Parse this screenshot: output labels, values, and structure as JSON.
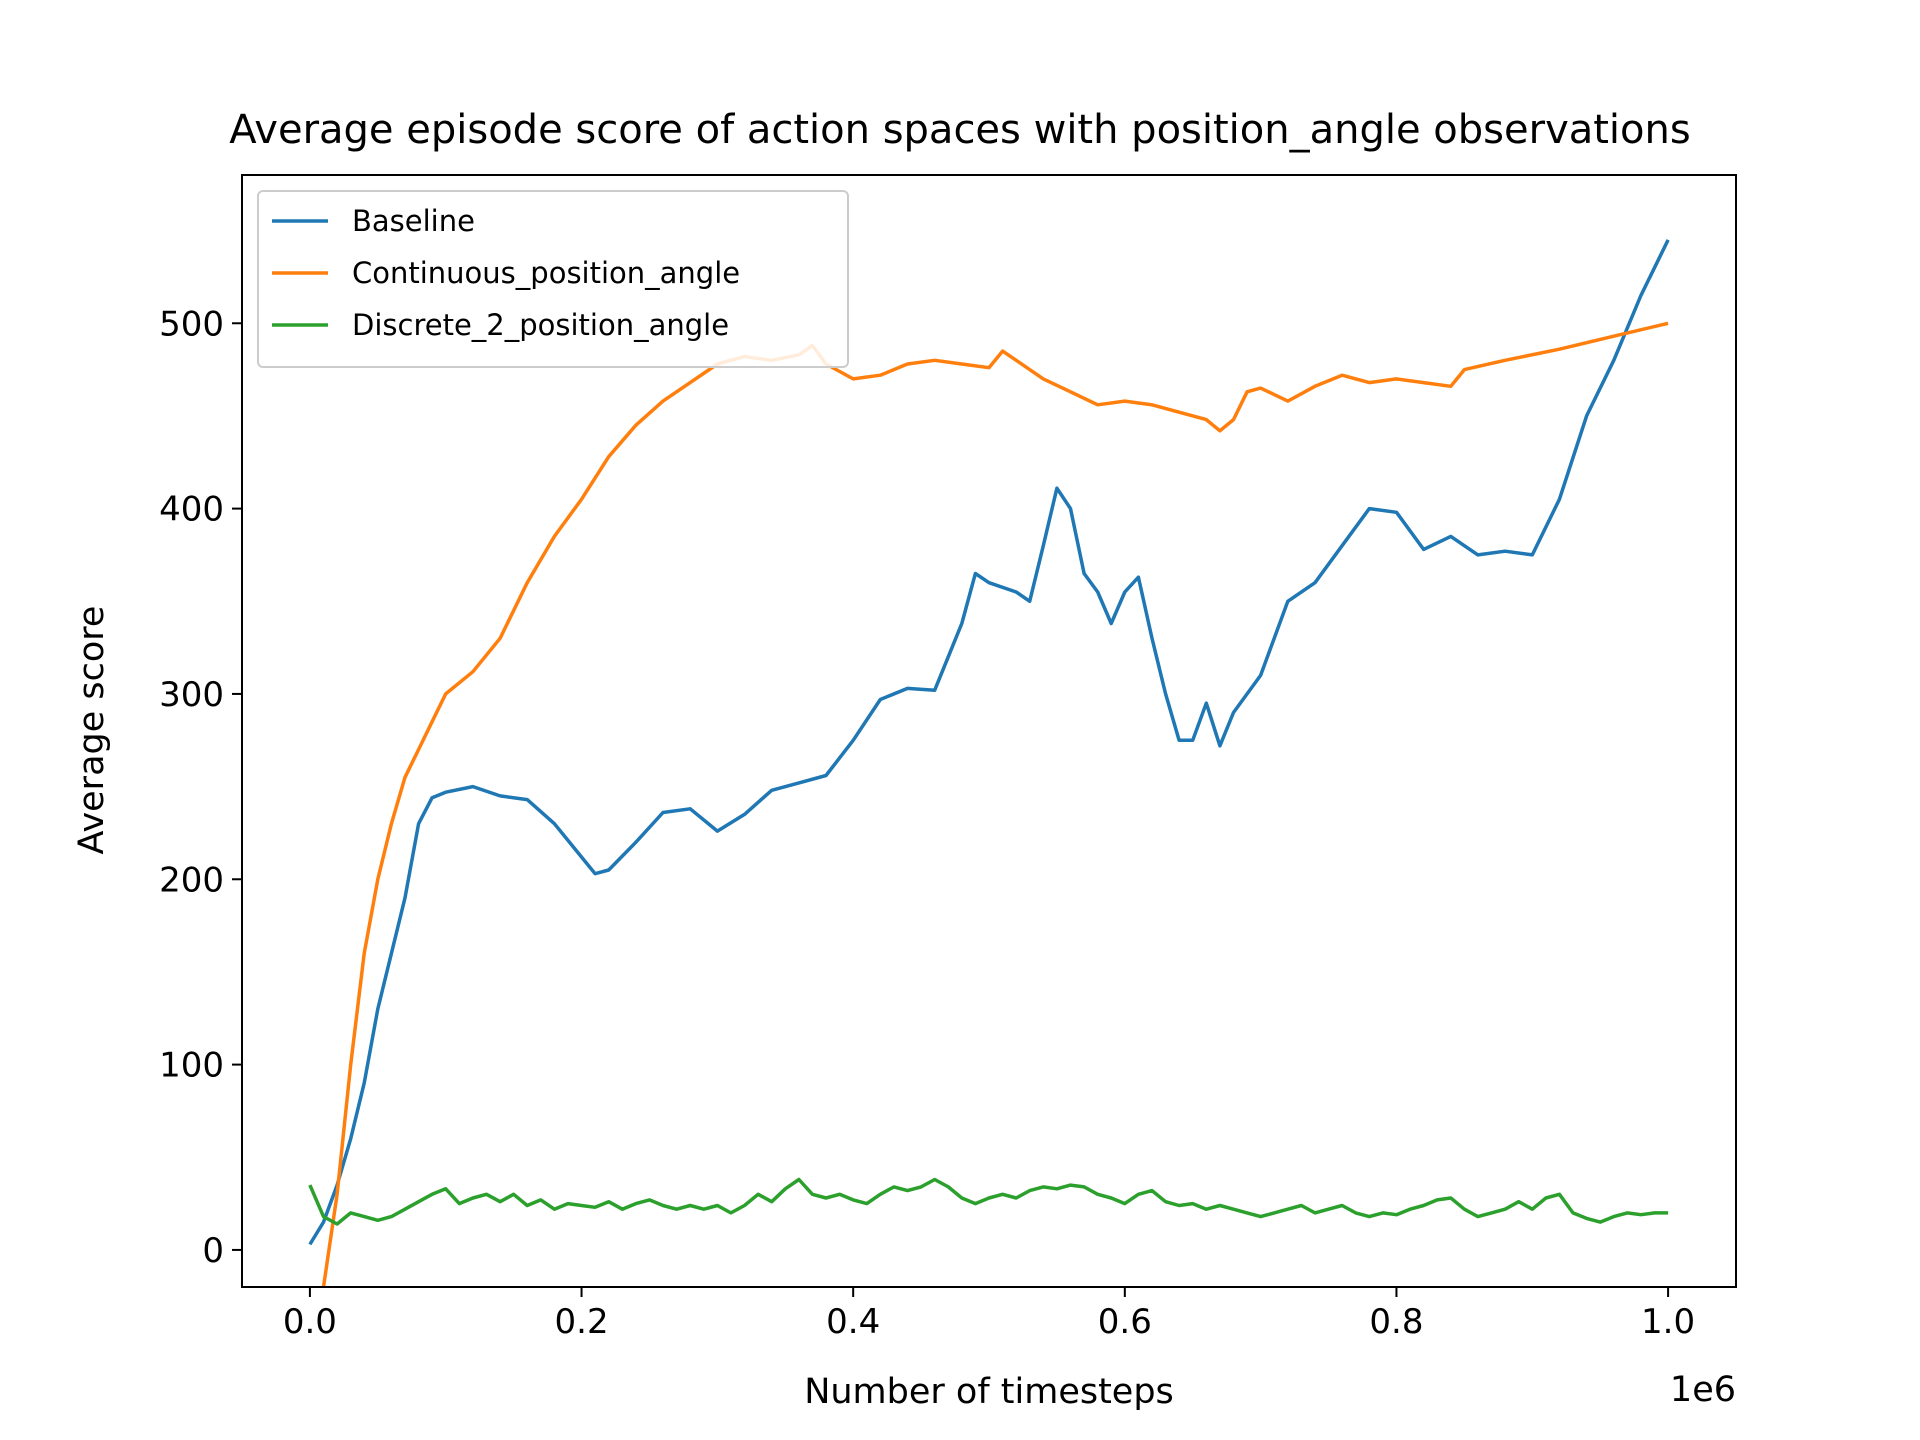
{
  "chart_data": {
    "type": "line",
    "title": "Average episode score of action spaces with position_angle observations",
    "xlabel": "Number of timesteps",
    "ylabel": "Average score",
    "x_multiplier_label": "1e6",
    "xlim": [
      -0.05,
      1.05
    ],
    "ylim": [
      -20,
      580
    ],
    "xticks": [
      0.0,
      0.2,
      0.4,
      0.6,
      0.8,
      1.0
    ],
    "xtick_labels": [
      "0.0",
      "0.2",
      "0.4",
      "0.6",
      "0.8",
      "1.0"
    ],
    "yticks": [
      0,
      100,
      200,
      300,
      400,
      500
    ],
    "ytick_labels": [
      "0",
      "100",
      "200",
      "300",
      "400",
      "500"
    ],
    "grid": false,
    "legend_position": "upper-left",
    "series": [
      {
        "name": "Baseline",
        "color": "#1f77b4",
        "points": [
          [
            0.0,
            3
          ],
          [
            0.01,
            15
          ],
          [
            0.02,
            35
          ],
          [
            0.03,
            60
          ],
          [
            0.04,
            90
          ],
          [
            0.05,
            130
          ],
          [
            0.06,
            160
          ],
          [
            0.07,
            190
          ],
          [
            0.08,
            230
          ],
          [
            0.09,
            244
          ],
          [
            0.1,
            247
          ],
          [
            0.12,
            250
          ],
          [
            0.14,
            245
          ],
          [
            0.16,
            243
          ],
          [
            0.18,
            230
          ],
          [
            0.2,
            212
          ],
          [
            0.21,
            203
          ],
          [
            0.22,
            205
          ],
          [
            0.24,
            220
          ],
          [
            0.26,
            236
          ],
          [
            0.28,
            238
          ],
          [
            0.3,
            226
          ],
          [
            0.32,
            235
          ],
          [
            0.34,
            248
          ],
          [
            0.36,
            252
          ],
          [
            0.38,
            256
          ],
          [
            0.4,
            275
          ],
          [
            0.42,
            297
          ],
          [
            0.44,
            303
          ],
          [
            0.46,
            302
          ],
          [
            0.48,
            338
          ],
          [
            0.49,
            365
          ],
          [
            0.5,
            360
          ],
          [
            0.52,
            355
          ],
          [
            0.53,
            350
          ],
          [
            0.54,
            380
          ],
          [
            0.55,
            411
          ],
          [
            0.56,
            400
          ],
          [
            0.57,
            365
          ],
          [
            0.58,
            355
          ],
          [
            0.59,
            338
          ],
          [
            0.6,
            355
          ],
          [
            0.61,
            363
          ],
          [
            0.62,
            330
          ],
          [
            0.63,
            300
          ],
          [
            0.64,
            275
          ],
          [
            0.65,
            275
          ],
          [
            0.66,
            295
          ],
          [
            0.67,
            272
          ],
          [
            0.68,
            290
          ],
          [
            0.7,
            310
          ],
          [
            0.72,
            350
          ],
          [
            0.74,
            360
          ],
          [
            0.76,
            380
          ],
          [
            0.78,
            400
          ],
          [
            0.8,
            398
          ],
          [
            0.82,
            378
          ],
          [
            0.84,
            385
          ],
          [
            0.86,
            375
          ],
          [
            0.88,
            377
          ],
          [
            0.9,
            375
          ],
          [
            0.92,
            405
          ],
          [
            0.94,
            450
          ],
          [
            0.96,
            480
          ],
          [
            0.98,
            515
          ],
          [
            1.0,
            545
          ]
        ]
      },
      {
        "name": "Continuous_position_angle",
        "color": "#ff7f0e",
        "points": [
          [
            0.01,
            -20
          ],
          [
            0.02,
            30
          ],
          [
            0.03,
            100
          ],
          [
            0.04,
            160
          ],
          [
            0.05,
            200
          ],
          [
            0.06,
            230
          ],
          [
            0.07,
            255
          ],
          [
            0.08,
            270
          ],
          [
            0.09,
            285
          ],
          [
            0.1,
            300
          ],
          [
            0.12,
            312
          ],
          [
            0.14,
            330
          ],
          [
            0.16,
            360
          ],
          [
            0.18,
            385
          ],
          [
            0.2,
            405
          ],
          [
            0.22,
            428
          ],
          [
            0.24,
            445
          ],
          [
            0.26,
            458
          ],
          [
            0.28,
            468
          ],
          [
            0.3,
            478
          ],
          [
            0.32,
            482
          ],
          [
            0.34,
            480
          ],
          [
            0.36,
            483
          ],
          [
            0.37,
            488
          ],
          [
            0.38,
            478
          ],
          [
            0.4,
            470
          ],
          [
            0.42,
            472
          ],
          [
            0.44,
            478
          ],
          [
            0.46,
            480
          ],
          [
            0.48,
            478
          ],
          [
            0.5,
            476
          ],
          [
            0.51,
            485
          ],
          [
            0.52,
            480
          ],
          [
            0.54,
            470
          ],
          [
            0.56,
            463
          ],
          [
            0.58,
            456
          ],
          [
            0.6,
            458
          ],
          [
            0.62,
            456
          ],
          [
            0.64,
            452
          ],
          [
            0.66,
            448
          ],
          [
            0.67,
            442
          ],
          [
            0.68,
            448
          ],
          [
            0.69,
            463
          ],
          [
            0.7,
            465
          ],
          [
            0.72,
            458
          ],
          [
            0.74,
            466
          ],
          [
            0.76,
            472
          ],
          [
            0.78,
            468
          ],
          [
            0.8,
            470
          ],
          [
            0.82,
            468
          ],
          [
            0.84,
            466
          ],
          [
            0.85,
            475
          ],
          [
            0.88,
            480
          ],
          [
            0.92,
            486
          ],
          [
            0.96,
            493
          ],
          [
            1.0,
            500
          ]
        ]
      },
      {
        "name": "Discrete_2_position_angle",
        "color": "#2ca02c",
        "points": [
          [
            0.0,
            35
          ],
          [
            0.01,
            18
          ],
          [
            0.02,
            14
          ],
          [
            0.03,
            20
          ],
          [
            0.04,
            18
          ],
          [
            0.05,
            16
          ],
          [
            0.06,
            18
          ],
          [
            0.07,
            22
          ],
          [
            0.08,
            26
          ],
          [
            0.09,
            30
          ],
          [
            0.1,
            33
          ],
          [
            0.11,
            25
          ],
          [
            0.12,
            28
          ],
          [
            0.13,
            30
          ],
          [
            0.14,
            26
          ],
          [
            0.15,
            30
          ],
          [
            0.16,
            24
          ],
          [
            0.17,
            27
          ],
          [
            0.18,
            22
          ],
          [
            0.19,
            25
          ],
          [
            0.2,
            24
          ],
          [
            0.21,
            23
          ],
          [
            0.22,
            26
          ],
          [
            0.23,
            22
          ],
          [
            0.24,
            25
          ],
          [
            0.25,
            27
          ],
          [
            0.26,
            24
          ],
          [
            0.27,
            22
          ],
          [
            0.28,
            24
          ],
          [
            0.29,
            22
          ],
          [
            0.3,
            24
          ],
          [
            0.31,
            20
          ],
          [
            0.32,
            24
          ],
          [
            0.33,
            30
          ],
          [
            0.34,
            26
          ],
          [
            0.35,
            33
          ],
          [
            0.36,
            38
          ],
          [
            0.37,
            30
          ],
          [
            0.38,
            28
          ],
          [
            0.39,
            30
          ],
          [
            0.4,
            27
          ],
          [
            0.41,
            25
          ],
          [
            0.42,
            30
          ],
          [
            0.43,
            34
          ],
          [
            0.44,
            32
          ],
          [
            0.45,
            34
          ],
          [
            0.46,
            38
          ],
          [
            0.47,
            34
          ],
          [
            0.48,
            28
          ],
          [
            0.49,
            25
          ],
          [
            0.5,
            28
          ],
          [
            0.51,
            30
          ],
          [
            0.52,
            28
          ],
          [
            0.53,
            32
          ],
          [
            0.54,
            34
          ],
          [
            0.55,
            33
          ],
          [
            0.56,
            35
          ],
          [
            0.57,
            34
          ],
          [
            0.58,
            30
          ],
          [
            0.59,
            28
          ],
          [
            0.6,
            25
          ],
          [
            0.61,
            30
          ],
          [
            0.62,
            32
          ],
          [
            0.63,
            26
          ],
          [
            0.64,
            24
          ],
          [
            0.65,
            25
          ],
          [
            0.66,
            22
          ],
          [
            0.67,
            24
          ],
          [
            0.68,
            22
          ],
          [
            0.69,
            20
          ],
          [
            0.7,
            18
          ],
          [
            0.71,
            20
          ],
          [
            0.72,
            22
          ],
          [
            0.73,
            24
          ],
          [
            0.74,
            20
          ],
          [
            0.75,
            22
          ],
          [
            0.76,
            24
          ],
          [
            0.77,
            20
          ],
          [
            0.78,
            18
          ],
          [
            0.79,
            20
          ],
          [
            0.8,
            19
          ],
          [
            0.81,
            22
          ],
          [
            0.82,
            24
          ],
          [
            0.83,
            27
          ],
          [
            0.84,
            28
          ],
          [
            0.85,
            22
          ],
          [
            0.86,
            18
          ],
          [
            0.87,
            20
          ],
          [
            0.88,
            22
          ],
          [
            0.89,
            26
          ],
          [
            0.9,
            22
          ],
          [
            0.91,
            28
          ],
          [
            0.92,
            30
          ],
          [
            0.93,
            20
          ],
          [
            0.94,
            17
          ],
          [
            0.95,
            15
          ],
          [
            0.96,
            18
          ],
          [
            0.97,
            20
          ],
          [
            0.98,
            19
          ],
          [
            0.99,
            20
          ],
          [
            1.0,
            20
          ]
        ]
      }
    ]
  }
}
